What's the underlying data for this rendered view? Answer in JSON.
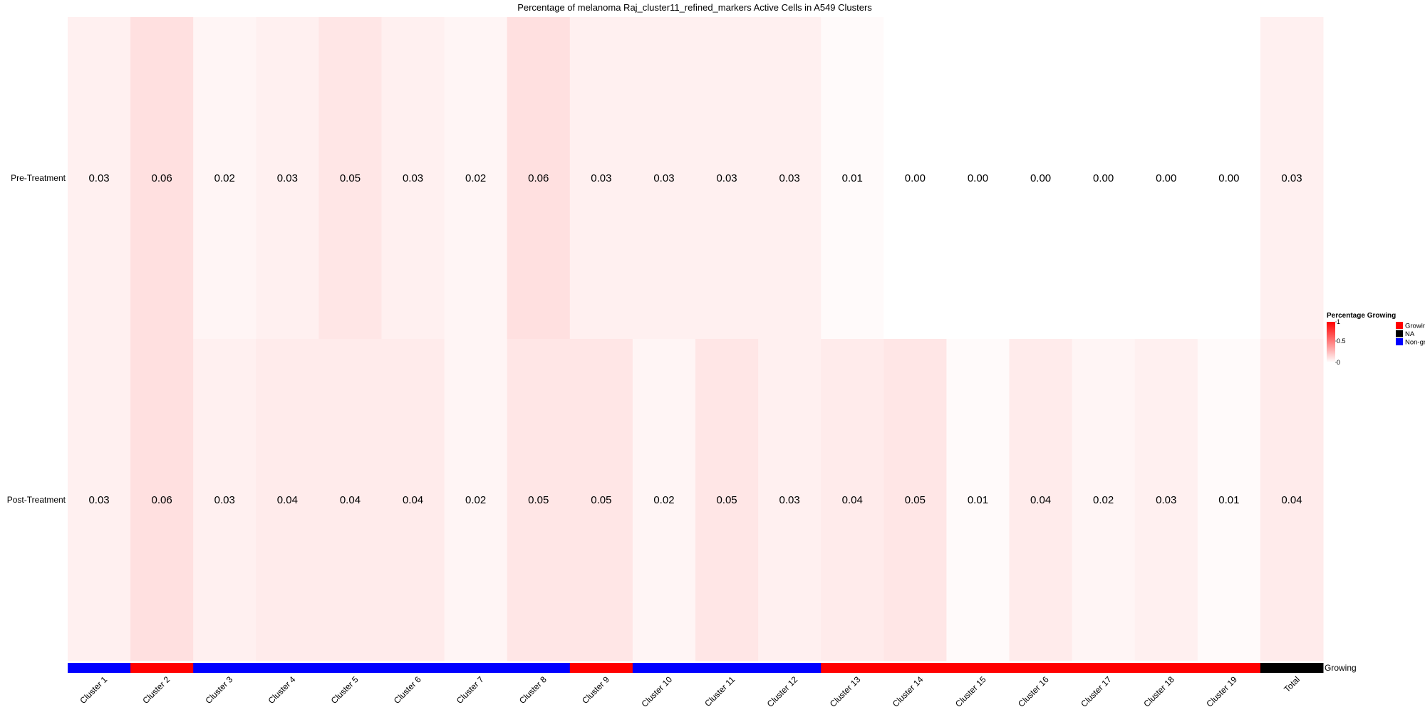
{
  "chart_data": {
    "type": "heatmap",
    "title": "Percentage of melanoma Raj_cluster11_refined_markers Active Cells in A549 Clusters",
    "columns": [
      "Cluster 1",
      "Cluster 2",
      "Cluster 3",
      "Cluster 4",
      "Cluster 5",
      "Cluster 6",
      "Cluster 7",
      "Cluster 8",
      "Cluster 9",
      "Cluster 10",
      "Cluster 11",
      "Cluster 12",
      "Cluster 13",
      "Cluster 14",
      "Cluster 15",
      "Cluster 16",
      "Cluster 17",
      "Cluster 18",
      "Cluster 19",
      "Total"
    ],
    "rows": [
      {
        "name": "Pre-Treatment",
        "values": [
          0.03,
          0.06,
          0.02,
          0.03,
          0.05,
          0.03,
          0.02,
          0.06,
          0.03,
          0.03,
          0.03,
          0.03,
          0.01,
          0.0,
          0.0,
          0.0,
          0.0,
          0.0,
          0.0,
          0.03
        ]
      },
      {
        "name": "Post-Treatment",
        "values": [
          0.03,
          0.06,
          0.03,
          0.04,
          0.04,
          0.04,
          0.02,
          0.05,
          0.05,
          0.02,
          0.05,
          0.03,
          0.04,
          0.05,
          0.01,
          0.04,
          0.02,
          0.03,
          0.01,
          0.04
        ]
      }
    ],
    "annotation": {
      "label": "Growing",
      "values": [
        "Non-growing",
        "Growing",
        "Non-growing",
        "Non-growing",
        "Non-growing",
        "Non-growing",
        "Non-growing",
        "Non-growing",
        "Growing",
        "Non-growing",
        "Non-growing",
        "Non-growing",
        "Growing",
        "Growing",
        "Growing",
        "Growing",
        "Growing",
        "Growing",
        "Growing",
        "NA"
      ],
      "colors": {
        "Growing": "#ff0000",
        "NA": "#000000",
        "Non-growing": "#0000ff"
      }
    },
    "legend_scale": {
      "title": "Percentage Growing",
      "ticks": [
        "1",
        "0.5",
        "0"
      ],
      "low_color": "#ffffff",
      "high_color": "#ff0000",
      "range": [
        0,
        1
      ]
    },
    "legend_categories": {
      "items": [
        "Growing",
        "NA",
        "Non-growing"
      ]
    }
  }
}
